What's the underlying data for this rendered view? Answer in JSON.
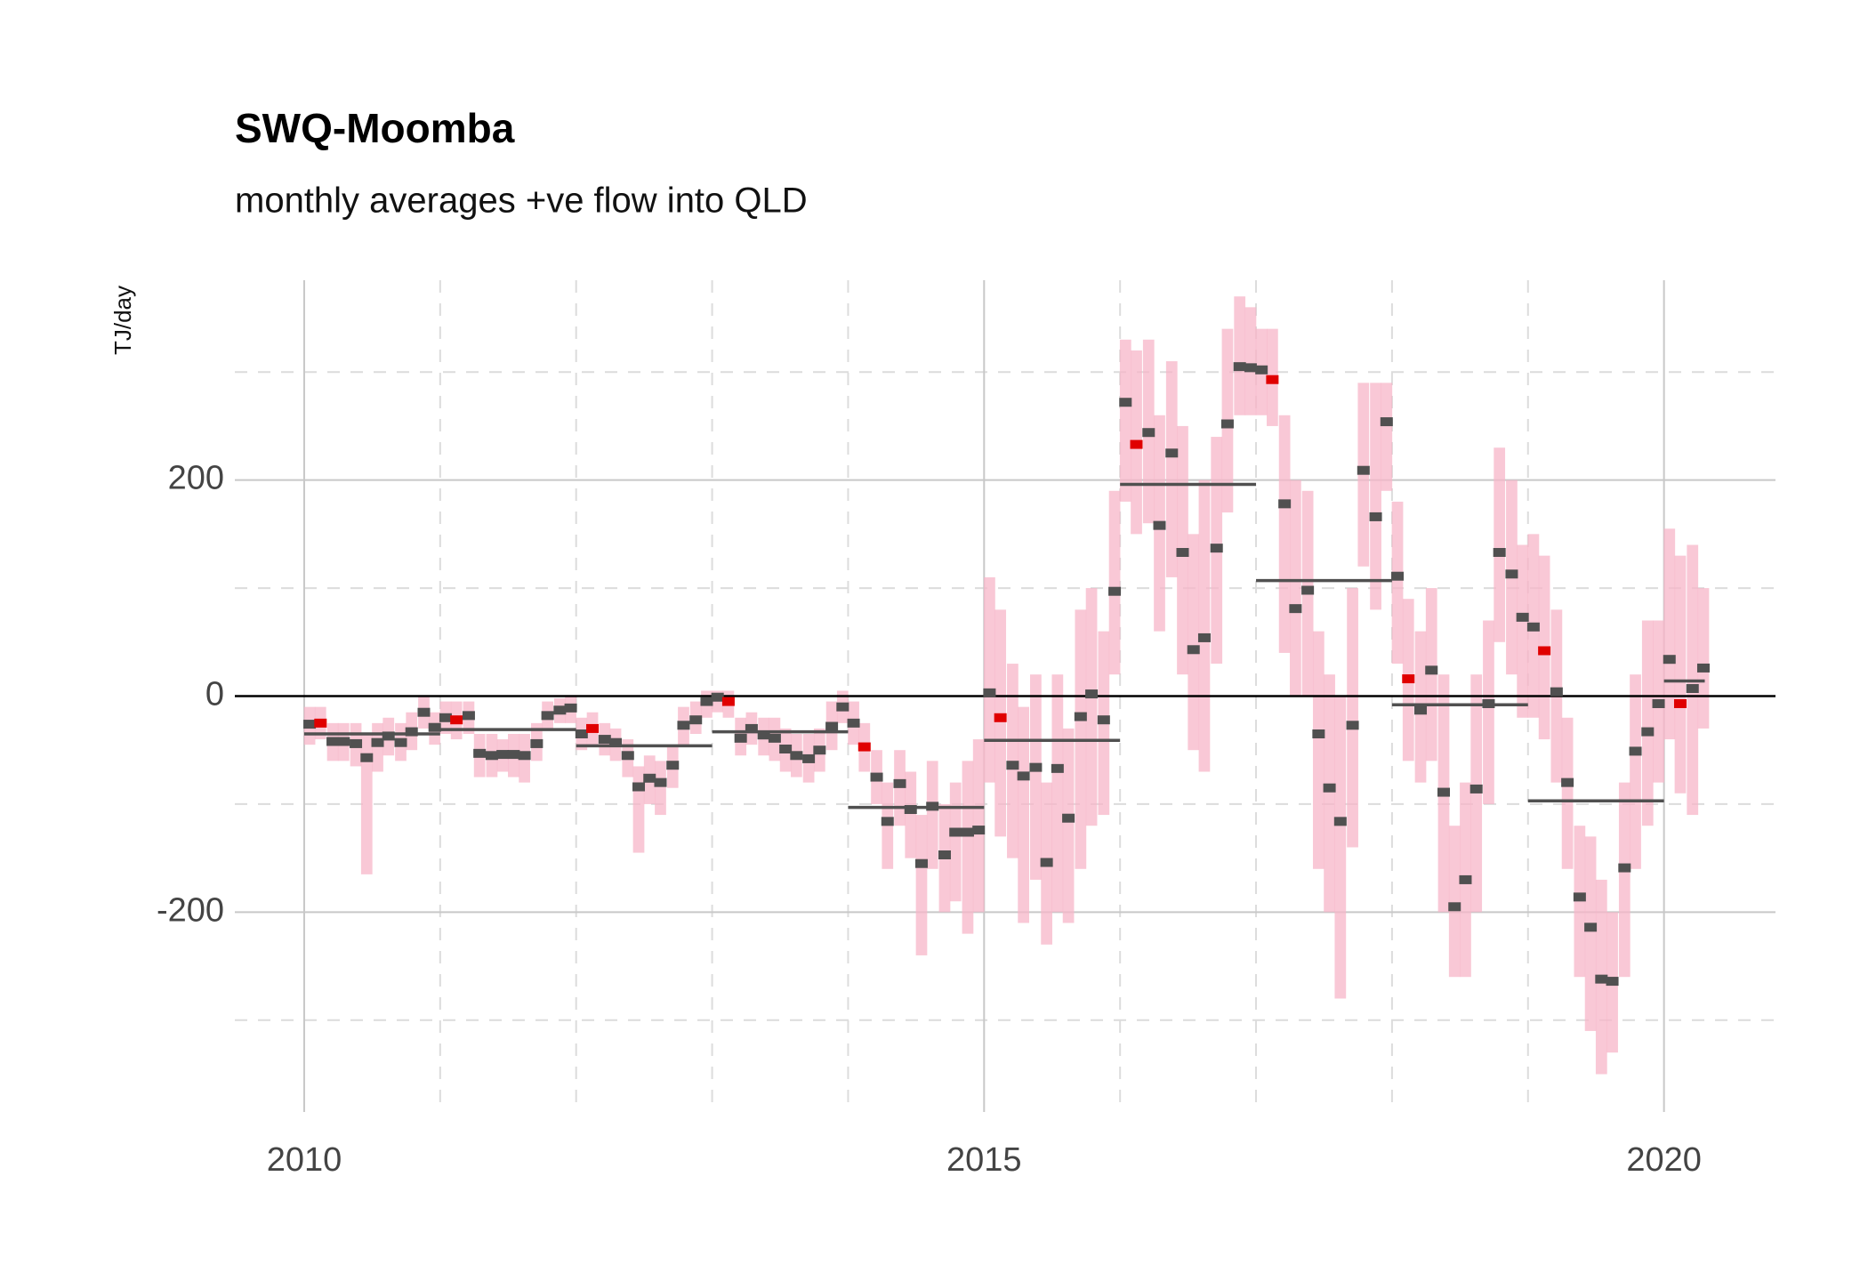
{
  "chart_data": {
    "type": "monthly-range",
    "title": "SWQ-Moomba",
    "subtitle": "monthly averages +ve flow into QLD",
    "y_label": "TJ/day",
    "xlim": [
      2009.49,
      2020.82
    ],
    "ylim": [
      -385,
      385
    ],
    "xticks": [
      2010,
      2015,
      2020
    ],
    "minor_xticks": [
      2011,
      2012,
      2013,
      2014,
      2016,
      2017,
      2018,
      2019
    ],
    "yticks": [
      -200,
      0,
      200
    ],
    "minor_yticks": [
      -300,
      -100,
      100,
      300
    ],
    "grid": true,
    "zero_line": true,
    "range_color": "#f7b6c8",
    "point_color": "#505050",
    "highlight_color": "#e00000",
    "highlight_month": 2,
    "annual_color": "#505050",
    "x": [
      2010.04,
      2010.12,
      2010.21,
      2010.29,
      2010.38,
      2010.46,
      2010.54,
      2010.62,
      2010.71,
      2010.79,
      2010.88,
      2010.96,
      2011.04,
      2011.12,
      2011.21,
      2011.29,
      2011.38,
      2011.46,
      2011.54,
      2011.62,
      2011.71,
      2011.79,
      2011.88,
      2011.96,
      2012.04,
      2012.12,
      2012.21,
      2012.29,
      2012.38,
      2012.46,
      2012.54,
      2012.62,
      2012.71,
      2012.79,
      2012.88,
      2012.96,
      2013.04,
      2013.12,
      2013.21,
      2013.29,
      2013.38,
      2013.46,
      2013.54,
      2013.62,
      2013.71,
      2013.79,
      2013.88,
      2013.96,
      2014.04,
      2014.12,
      2014.21,
      2014.29,
      2014.38,
      2014.46,
      2014.54,
      2014.62,
      2014.71,
      2014.79,
      2014.88,
      2014.96,
      2015.04,
      2015.12,
      2015.21,
      2015.29,
      2015.38,
      2015.46,
      2015.54,
      2015.62,
      2015.71,
      2015.79,
      2015.88,
      2015.96,
      2016.04,
      2016.12,
      2016.21,
      2016.29,
      2016.38,
      2016.46,
      2016.54,
      2016.62,
      2016.71,
      2016.79,
      2016.88,
      2016.96,
      2017.04,
      2017.12,
      2017.21,
      2017.29,
      2017.38,
      2017.46,
      2017.54,
      2017.62,
      2017.71,
      2017.79,
      2017.88,
      2017.96,
      2018.04,
      2018.12,
      2018.21,
      2018.29,
      2018.38,
      2018.46,
      2018.54,
      2018.62,
      2018.71,
      2018.79,
      2018.88,
      2018.96,
      2019.04,
      2019.12,
      2019.21,
      2019.29,
      2019.38,
      2019.46,
      2019.54,
      2019.62,
      2019.71,
      2019.79,
      2019.88,
      2019.96,
      2020.04,
      2020.12,
      2020.21,
      2020.29
    ],
    "values": [
      -26,
      -25,
      -42,
      -42,
      -44,
      -57,
      -43,
      -37,
      -43,
      -33,
      -15,
      -29,
      -20,
      -22,
      -18,
      -53,
      -55,
      -54,
      -54,
      -55,
      -44,
      -18,
      -13,
      -11,
      -35,
      -30,
      -40,
      -43,
      -55,
      -84,
      -76,
      -80,
      -64,
      -27,
      -22,
      -5,
      -1,
      -5,
      -39,
      -30,
      -36,
      -39,
      -49,
      -55,
      -58,
      -50,
      -28,
      -10,
      -25,
      -47,
      -75,
      -116,
      -81,
      -105,
      -155,
      -102,
      -147,
      -126,
      -126,
      -124,
      3,
      -20,
      -64,
      -74,
      -66,
      -154,
      -67,
      -113,
      -19,
      2,
      -22,
      97,
      272,
      233,
      244,
      158,
      225,
      133,
      43,
      54,
      137,
      252,
      305,
      304,
      302,
      293,
      178,
      81,
      98,
      -35,
      -85,
      -116,
      -27,
      209,
      166,
      254,
      111,
      16,
      -13,
      24,
      -89,
      -195,
      -170,
      -86,
      -7,
      133,
      113,
      73,
      64,
      42,
      4,
      -80,
      -186,
      -214,
      -262,
      -264,
      -159,
      -51,
      -33,
      -7,
      34,
      -7,
      7,
      26
    ],
    "daily_low": [
      -45,
      -40,
      -60,
      -60,
      -65,
      -165,
      -70,
      -55,
      -60,
      -50,
      -30,
      -45,
      -35,
      -40,
      -35,
      -75,
      -75,
      -70,
      -75,
      -80,
      -60,
      -30,
      -25,
      -25,
      -50,
      -45,
      -55,
      -60,
      -75,
      -145,
      -100,
      -110,
      -85,
      -45,
      -35,
      -20,
      -15,
      -20,
      -55,
      -45,
      -55,
      -60,
      -70,
      -75,
      -80,
      -70,
      -50,
      -25,
      -45,
      -70,
      -100,
      -160,
      -120,
      -150,
      -240,
      -160,
      -200,
      -190,
      -220,
      -200,
      -80,
      -130,
      -150,
      -210,
      -170,
      -230,
      -200,
      -210,
      -160,
      -120,
      -110,
      20,
      180,
      150,
      160,
      60,
      110,
      20,
      -50,
      -70,
      30,
      170,
      260,
      260,
      260,
      250,
      40,
      0,
      0,
      -160,
      -200,
      -280,
      -140,
      120,
      80,
      190,
      30,
      -60,
      -80,
      -60,
      -200,
      -260,
      -260,
      -200,
      -100,
      50,
      20,
      -20,
      -20,
      -40,
      -80,
      -160,
      -260,
      -310,
      -350,
      -330,
      -260,
      -160,
      -120,
      -80,
      -40,
      -90,
      -110,
      -30
    ],
    "daily_high": [
      -10,
      -10,
      -25,
      -25,
      -25,
      -35,
      -25,
      -20,
      -25,
      -15,
      0,
      -15,
      -5,
      -5,
      -5,
      -35,
      -35,
      -40,
      -35,
      -35,
      -25,
      -5,
      -2,
      0,
      -20,
      -15,
      -25,
      -30,
      -40,
      -65,
      -55,
      -60,
      -45,
      -10,
      -5,
      5,
      5,
      5,
      -20,
      -15,
      -20,
      -20,
      -30,
      -35,
      -35,
      -30,
      -5,
      5,
      -5,
      -25,
      -50,
      -80,
      -50,
      -70,
      -110,
      -60,
      -100,
      -80,
      -60,
      -40,
      110,
      80,
      30,
      -10,
      20,
      -80,
      20,
      -30,
      80,
      100,
      60,
      190,
      330,
      320,
      330,
      260,
      310,
      250,
      150,
      200,
      240,
      340,
      370,
      360,
      340,
      340,
      260,
      200,
      190,
      60,
      20,
      0,
      100,
      290,
      290,
      290,
      180,
      90,
      60,
      100,
      20,
      -120,
      -80,
      20,
      70,
      230,
      200,
      140,
      150,
      130,
      80,
      -20,
      -120,
      -130,
      -170,
      -200,
      -80,
      20,
      70,
      70,
      155,
      130,
      140,
      100
    ],
    "annual_start": [
      2010,
      2011,
      2012,
      2013,
      2014,
      2015,
      2016,
      2017,
      2018,
      2019,
      2020
    ],
    "annual_end": [
      2011,
      2012,
      2013,
      2014,
      2015,
      2016,
      2017,
      2018,
      2019,
      2020,
      2020.3
    ],
    "annual_values": [
      -35,
      -31,
      -46,
      -33,
      -103,
      -41,
      196,
      107,
      -8,
      -97,
      14
    ]
  }
}
